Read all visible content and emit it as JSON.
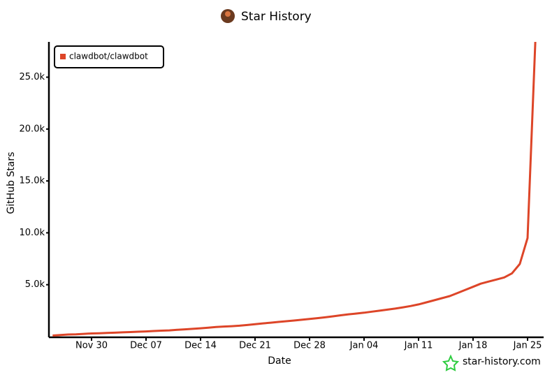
{
  "chart_data": {
    "type": "line",
    "title": "Star History",
    "xlabel": "Date",
    "ylabel": "GitHub Stars",
    "watermark": "star-history.com",
    "x": [
      "Nov 25",
      "Nov 26",
      "Nov 27",
      "Nov 28",
      "Nov 29",
      "Nov 30",
      "Dec 01",
      "Dec 02",
      "Dec 03",
      "Dec 04",
      "Dec 05",
      "Dec 06",
      "Dec 07",
      "Dec 08",
      "Dec 09",
      "Dec 10",
      "Dec 11",
      "Dec 12",
      "Dec 13",
      "Dec 14",
      "Dec 15",
      "Dec 16",
      "Dec 17",
      "Dec 18",
      "Dec 19",
      "Dec 20",
      "Dec 21",
      "Dec 22",
      "Dec 23",
      "Dec 24",
      "Dec 25",
      "Dec 26",
      "Dec 27",
      "Dec 28",
      "Dec 29",
      "Dec 30",
      "Dec 31",
      "Jan 01",
      "Jan 02",
      "Jan 03",
      "Jan 04",
      "Jan 05",
      "Jan 06",
      "Jan 07",
      "Jan 08",
      "Jan 09",
      "Jan 10",
      "Jan 11",
      "Jan 12",
      "Jan 13",
      "Jan 14",
      "Jan 15",
      "Jan 16",
      "Jan 17",
      "Jan 18",
      "Jan 19",
      "Jan 20",
      "Jan 21",
      "Jan 22",
      "Jan 23",
      "Jan 24",
      "Jan 25",
      "Jan 26"
    ],
    "series": [
      {
        "name": "clawdbot/clawdbot",
        "color": "#dd4528",
        "values": [
          100,
          150,
          200,
          220,
          260,
          300,
          320,
          350,
          380,
          410,
          440,
          470,
          500,
          540,
          570,
          600,
          650,
          700,
          750,
          800,
          860,
          920,
          970,
          1000,
          1050,
          1120,
          1200,
          1270,
          1340,
          1410,
          1480,
          1550,
          1620,
          1700,
          1780,
          1860,
          1950,
          2050,
          2150,
          2220,
          2300,
          2400,
          2500,
          2600,
          2700,
          2820,
          2950,
          3100,
          3300,
          3500,
          3700,
          3900,
          4200,
          4500,
          4800,
          5100,
          5300,
          5500,
          5700,
          6100,
          7000,
          9500,
          28400
        ]
      }
    ],
    "xticks": [
      "Nov 30",
      "Dec 07",
      "Dec 14",
      "Dec 21",
      "Dec 28",
      "Jan 04",
      "Jan 11",
      "Jan 18",
      "Jan 25"
    ],
    "ylim": [
      0,
      28400
    ],
    "yticks": [
      {
        "value": 5000,
        "label": "5.0k"
      },
      {
        "value": 10000,
        "label": "10.0k"
      },
      {
        "value": 15000,
        "label": "15.0k"
      },
      {
        "value": 20000,
        "label": "20.0k"
      },
      {
        "value": 25000,
        "label": "25.0k"
      }
    ],
    "legend": "top-left",
    "grid": false
  }
}
